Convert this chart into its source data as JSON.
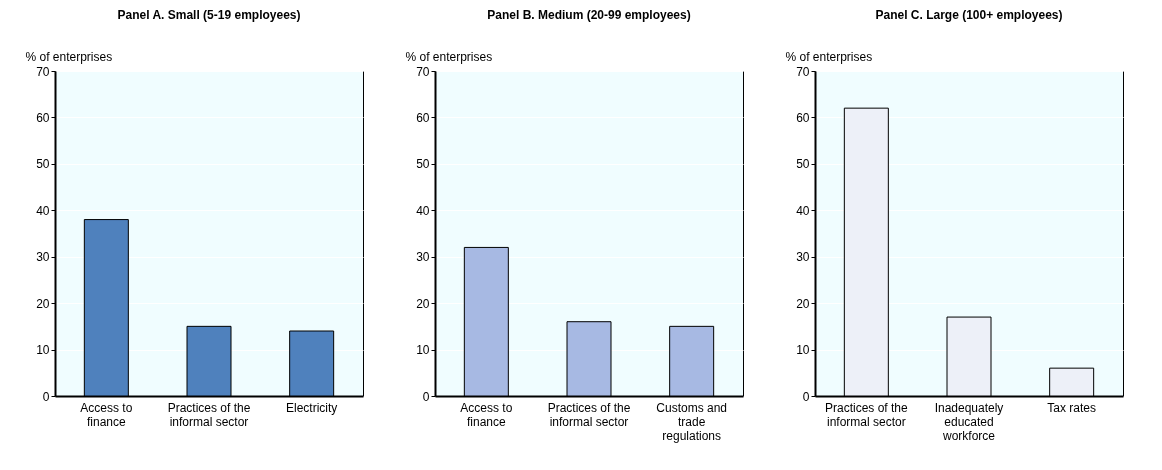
{
  "chart_data": [
    {
      "type": "bar",
      "title": "Panel A. Small (5-19 employees)",
      "ylabel": "% of enterprises",
      "categories": [
        "Access to finance",
        "Practices of the informal sector",
        "Electricity"
      ],
      "values": [
        38,
        15,
        14
      ],
      "color": "#4f81bd",
      "ylim": [
        0,
        70
      ],
      "yticks": [
        0,
        10,
        20,
        30,
        40,
        50,
        60,
        70
      ],
      "grid": true
    },
    {
      "type": "bar",
      "title": "Panel B. Medium (20-99 employees)",
      "ylabel": "% of enterprises",
      "categories": [
        "Access to finance",
        "Practices of the informal sector",
        "Customs and trade regulations"
      ],
      "values": [
        32,
        16,
        15
      ],
      "color": "#a7b9e3",
      "ylim": [
        0,
        70
      ],
      "yticks": [
        0,
        10,
        20,
        30,
        40,
        50,
        60,
        70
      ],
      "grid": true
    },
    {
      "type": "bar",
      "title": "Panel C. Large (100+ employees)",
      "ylabel": "% of enterprises",
      "categories": [
        "Practices of the informal sector",
        "Inadequately educated workforce",
        "Tax rates"
      ],
      "values": [
        62,
        17,
        6
      ],
      "color": "#edf0f8",
      "ylim": [
        0,
        70
      ],
      "yticks": [
        0,
        10,
        20,
        30,
        40,
        50,
        60,
        70
      ],
      "grid": true
    }
  ]
}
